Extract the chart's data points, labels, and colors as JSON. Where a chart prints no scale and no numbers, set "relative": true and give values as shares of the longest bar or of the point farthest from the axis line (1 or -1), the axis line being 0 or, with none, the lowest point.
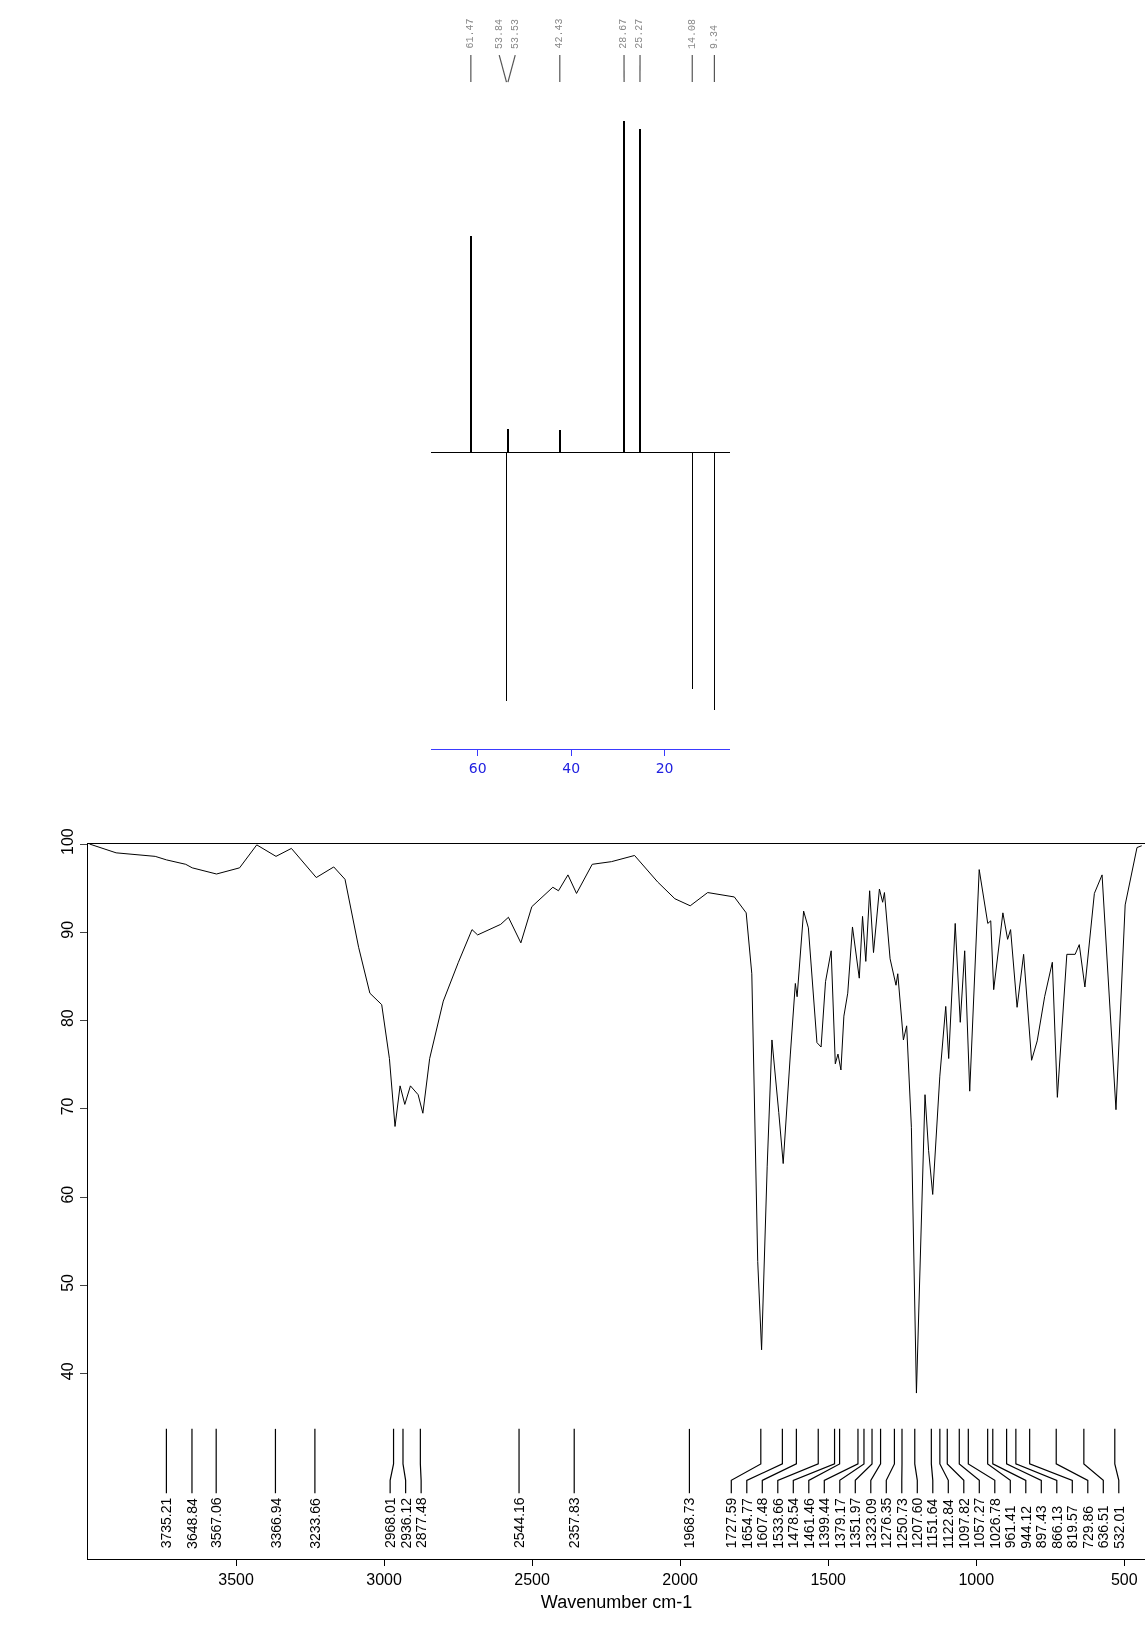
{
  "chart_data": [
    {
      "type": "bar",
      "relative": true,
      "color": "#000000",
      "xlim": [
        70,
        6
      ],
      "xticks": [
        60,
        40,
        20
      ],
      "x": [
        61.47,
        53.84,
        53.53,
        42.43,
        28.67,
        25.27,
        14.08,
        9.34
      ],
      "values": [
        0.654,
        -0.752,
        0.071,
        0.067,
        1,
        0.975,
        -0.715,
        -0.779
      ],
      "annotations": [
        {
          "text": "61.47",
          "x": 61.47
        },
        {
          "text": "53.84",
          "x": 53.84
        },
        {
          "text": "53.53",
          "x": 53.53
        },
        {
          "text": "42.43",
          "x": 42.43
        },
        {
          "text": "28.67",
          "x": 28.67
        },
        {
          "text": "25.27",
          "x": 25.27
        },
        {
          "text": "14.08",
          "x": 14.08
        },
        {
          "text": "9.34",
          "x": 9.34
        }
      ]
    },
    {
      "type": "line",
      "color": "#000000",
      "xlabel": "Wavenumber cm-1",
      "xlim": [
        4000,
        430
      ],
      "ylim": [
        19,
        100
      ],
      "xticks": [
        3500,
        3000,
        2500,
        2000,
        1500,
        1000,
        500
      ],
      "yticks": [
        40,
        50,
        60,
        70,
        80,
        90,
        100
      ],
      "x": [
        3995,
        3905,
        3773,
        3735,
        3670,
        3648,
        3566,
        3488,
        3430,
        3365,
        3313,
        3229,
        3170,
        3132,
        3086,
        3048,
        3008,
        2982,
        2963,
        2946,
        2930,
        2911,
        2885,
        2869,
        2846,
        2800,
        2749,
        2703,
        2684,
        2606,
        2580,
        2538,
        2501,
        2430,
        2411,
        2379,
        2350,
        2297,
        2232,
        2154,
        2076,
        2018,
        1966,
        1907,
        1817,
        1777,
        1758,
        1738,
        1725,
        1706,
        1690,
        1667,
        1652,
        1628,
        1611,
        1605,
        1583,
        1567,
        1538,
        1524,
        1509,
        1490,
        1476,
        1467,
        1457,
        1447,
        1434,
        1418,
        1395,
        1384,
        1373,
        1360,
        1347,
        1327,
        1316,
        1310,
        1291,
        1271,
        1265,
        1246,
        1235,
        1219,
        1202,
        1173,
        1161,
        1147,
        1123,
        1103,
        1093,
        1071,
        1054,
        1039,
        1022,
        990,
        961,
        951,
        941,
        910,
        894,
        884,
        862,
        840,
        813,
        794,
        769,
        743,
        726,
        694,
        666,
        652,
        633,
        601,
        575,
        528,
        497,
        457,
        441
      ],
      "values": [
        100,
        99.0,
        98.6,
        98.2,
        97.7,
        97.3,
        96.6,
        97.3,
        99.9,
        98.6,
        99.5,
        96.2,
        97.4,
        96.0,
        88.3,
        83.1,
        81.8,
        75.7,
        68.0,
        72.6,
        70.5,
        72.6,
        71.6,
        69.5,
        75.7,
        82.2,
        86.6,
        90.3,
        89.7,
        90.9,
        91.7,
        88.8,
        92.9,
        95.1,
        94.7,
        96.5,
        94.4,
        97.7,
        98.0,
        98.7,
        95.7,
        93.8,
        93.0,
        94.5,
        94.0,
        92.2,
        85.3,
        52.7,
        42.7,
        63.5,
        77.8,
        69.6,
        63.8,
        76.1,
        84.2,
        82.7,
        92.4,
        90.5,
        77.5,
        77.0,
        84.4,
        87.9,
        75.1,
        76.2,
        74.4,
        80.5,
        83.1,
        90.6,
        84.8,
        91.8,
        86.7,
        94.7,
        87.7,
        94.9,
        93.4,
        94.5,
        87.0,
        84.0,
        85.3,
        77.8,
        79.4,
        67.9,
        37.8,
        71.6,
        65.3,
        60.3,
        73.7,
        81.6,
        75.7,
        91.0,
        79.8,
        87.9,
        72.0,
        97.1,
        91.0,
        91.3,
        83.5,
        92.2,
        89.2,
        90.3,
        81.5,
        87.5,
        75.5,
        77.7,
        82.7,
        86.6,
        71.3,
        87.5,
        87.5,
        88.6,
        83.8,
        94.4,
        96.5,
        69.9,
        93.1,
        99.6,
        99.8
      ],
      "annotations": [
        {
          "text": "3735.21",
          "x": 3735.21
        },
        {
          "text": "3648.84",
          "x": 3648.84
        },
        {
          "text": "3567.06",
          "x": 3567.06
        },
        {
          "text": "3366.94",
          "x": 3366.94
        },
        {
          "text": "3233.66",
          "x": 3233.66
        },
        {
          "text": "2968.01",
          "x": 2968.01
        },
        {
          "text": "2936.12",
          "x": 2936.12
        },
        {
          "text": "2877.48",
          "x": 2877.48
        },
        {
          "text": "2544.16",
          "x": 2544.16
        },
        {
          "text": "2357.83",
          "x": 2357.83
        },
        {
          "text": "1968.73",
          "x": 1968.73
        },
        {
          "text": "1727.59",
          "x": 1727.59
        },
        {
          "text": "1654.77",
          "x": 1654.77
        },
        {
          "text": "1607.48",
          "x": 1607.48
        },
        {
          "text": "1533.66",
          "x": 1533.66
        },
        {
          "text": "1478.54",
          "x": 1478.54
        },
        {
          "text": "1461.46",
          "x": 1461.46
        },
        {
          "text": "1399.44",
          "x": 1399.44
        },
        {
          "text": "1379.17",
          "x": 1379.17
        },
        {
          "text": "1351.97",
          "x": 1351.97
        },
        {
          "text": "1323.09",
          "x": 1323.09
        },
        {
          "text": "1276.35",
          "x": 1276.35
        },
        {
          "text": "1250.73",
          "x": 1250.73
        },
        {
          "text": "1207.60",
          "x": 1207.6
        },
        {
          "text": "1151.64",
          "x": 1151.64
        },
        {
          "text": "1122.84",
          "x": 1122.84
        },
        {
          "text": "1097.82",
          "x": 1097.82
        },
        {
          "text": "1057.27",
          "x": 1057.27
        },
        {
          "text": "1026.78",
          "x": 1026.78
        },
        {
          "text": "961.41",
          "x": 961.41
        },
        {
          "text": "944.12",
          "x": 944.12
        },
        {
          "text": "897.43",
          "x": 897.43
        },
        {
          "text": "866.13",
          "x": 866.13
        },
        {
          "text": "819.57",
          "x": 819.57
        },
        {
          "text": "729.86",
          "x": 729.86
        },
        {
          "text": "636.51",
          "x": 636.51
        },
        {
          "text": "532.01",
          "x": 532.01
        }
      ]
    }
  ]
}
